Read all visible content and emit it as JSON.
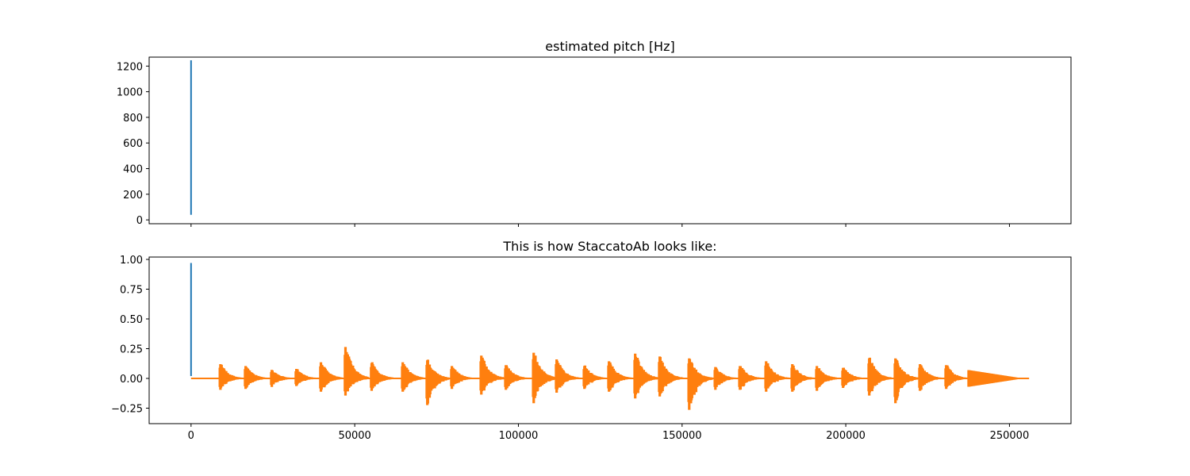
{
  "chart_data": [
    {
      "type": "line",
      "title": "estimated pitch [Hz]",
      "xlabel": "",
      "ylabel": "",
      "xlim": [
        -12800,
        268800
      ],
      "ylim": [
        -30,
        1270
      ],
      "grid": false,
      "x_ticks": [
        0,
        50000,
        100000,
        150000,
        200000,
        250000
      ],
      "x_tick_labels_visible": false,
      "y_ticks": [
        0,
        200,
        400,
        600,
        800,
        1000,
        1200
      ],
      "y_tick_labels": [
        "0",
        "200",
        "400",
        "600",
        "800",
        "1000",
        "1200"
      ],
      "series": [
        {
          "color": "#1f77b4",
          "x": [
            0,
            0
          ],
          "y": [
            40,
            1245
          ]
        }
      ]
    },
    {
      "type": "line",
      "title": "This is how StaccatoAb looks like:",
      "xlabel": "",
      "ylabel": "",
      "xlim": [
        -12800,
        268800
      ],
      "ylim": [
        -0.38,
        1.02
      ],
      "grid": false,
      "x_ticks": [
        0,
        50000,
        100000,
        150000,
        200000,
        250000
      ],
      "x_tick_labels": [
        "0",
        "50000",
        "100000",
        "150000",
        "200000",
        "250000"
      ],
      "y_ticks": [
        -0.25,
        0.0,
        0.25,
        0.5,
        0.75,
        1.0
      ],
      "y_tick_labels": [
        "−0.25",
        "0.00",
        "0.25",
        "0.50",
        "0.75",
        "1.00"
      ],
      "series": [
        {
          "color": "#1f77b4",
          "x": [
            0,
            0
          ],
          "y": [
            0.02,
            0.97
          ]
        },
        {
          "color": "#ff7f0e",
          "type": "waveform-envelope",
          "baseline": 0.0,
          "x_range": [
            0,
            256000
          ],
          "bursts": [
            {
              "x": 8800,
              "up": 0.15,
              "down": -0.12
            },
            {
              "x": 16500,
              "up": 0.13,
              "down": -0.11
            },
            {
              "x": 24500,
              "up": 0.09,
              "down": -0.09
            },
            {
              "x": 32000,
              "up": 0.1,
              "down": -0.08
            },
            {
              "x": 39500,
              "up": 0.17,
              "down": -0.14
            },
            {
              "x": 47000,
              "up": 0.33,
              "down": -0.18
            },
            {
              "x": 55000,
              "up": 0.16,
              "down": -0.13
            },
            {
              "x": 64500,
              "up": 0.17,
              "down": -0.14
            },
            {
              "x": 72000,
              "up": 0.19,
              "down": -0.28
            },
            {
              "x": 79500,
              "up": 0.13,
              "down": -0.11
            },
            {
              "x": 88500,
              "up": 0.24,
              "down": -0.17
            },
            {
              "x": 96000,
              "up": 0.14,
              "down": -0.12
            },
            {
              "x": 104500,
              "up": 0.27,
              "down": -0.26
            },
            {
              "x": 111500,
              "up": 0.2,
              "down": -0.15
            },
            {
              "x": 120000,
              "up": 0.13,
              "down": -0.11
            },
            {
              "x": 127500,
              "up": 0.18,
              "down": -0.14
            },
            {
              "x": 135500,
              "up": 0.26,
              "down": -0.21
            },
            {
              "x": 143000,
              "up": 0.23,
              "down": -0.19
            },
            {
              "x": 152000,
              "up": 0.21,
              "down": -0.33
            },
            {
              "x": 160000,
              "up": 0.12,
              "down": -0.12
            },
            {
              "x": 167500,
              "up": 0.13,
              "down": -0.12
            },
            {
              "x": 175500,
              "up": 0.18,
              "down": -0.14
            },
            {
              "x": 183500,
              "up": 0.15,
              "down": -0.14
            },
            {
              "x": 191000,
              "up": 0.13,
              "down": -0.13
            },
            {
              "x": 199000,
              "up": 0.11,
              "down": -0.1
            },
            {
              "x": 207000,
              "up": 0.21,
              "down": -0.18
            },
            {
              "x": 215000,
              "up": 0.21,
              "down": -0.26
            },
            {
              "x": 222500,
              "up": 0.15,
              "down": -0.13
            },
            {
              "x": 230500,
              "up": 0.14,
              "down": -0.11
            }
          ]
        }
      ]
    }
  ]
}
